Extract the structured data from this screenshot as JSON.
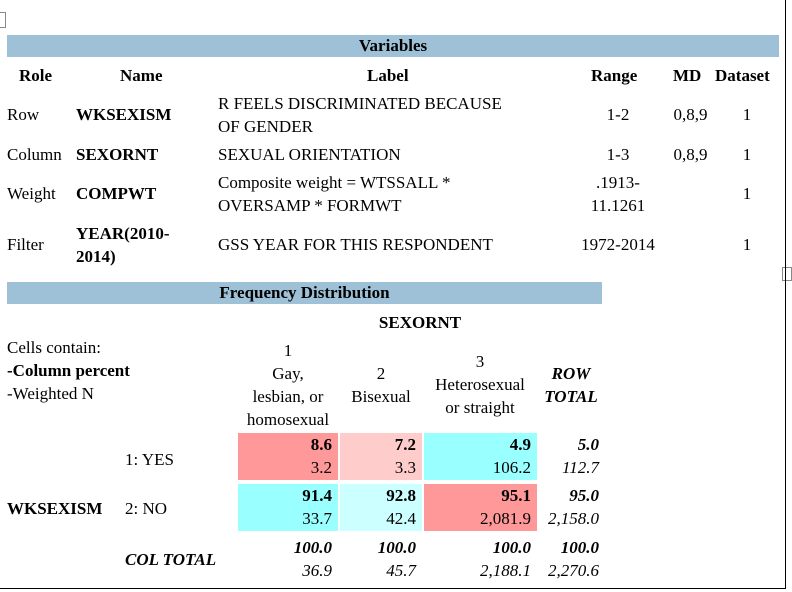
{
  "variables": {
    "title": "Variables",
    "headers": {
      "role": "Role",
      "name": "Name",
      "label": "Label",
      "range": "Range",
      "md": "MD",
      "dataset": "Dataset"
    },
    "rows": [
      {
        "role": "Row",
        "name": "WKSEXISM",
        "label_l1": "R FEELS DISCRIMINATED BECAUSE",
        "label_l2": "OF GENDER",
        "range_l1": "1-2",
        "range_l2": "",
        "md": "0,8,9",
        "dataset": "1"
      },
      {
        "role": "Column",
        "name": "SEXORNT",
        "label_l1": "SEXUAL ORIENTATION",
        "label_l2": "",
        "range_l1": "1-3",
        "range_l2": "",
        "md": "0,8,9",
        "dataset": "1"
      },
      {
        "role": "Weight",
        "name": "COMPWT",
        "label_l1": "Composite weight = WTSSALL *",
        "label_l2": "OVERSAMP * FORMWT",
        "range_l1": ".1913-",
        "range_l2": "11.1261",
        "md": "",
        "dataset": "1"
      },
      {
        "role": "Filter",
        "name_l1": "YEAR(2010-",
        "name_l2": "2014)",
        "label_l1": "GSS YEAR FOR THIS RESPONDENT",
        "label_l2": "",
        "range_l1": "1972-2014",
        "range_l2": "",
        "md": "",
        "dataset": "1"
      }
    ]
  },
  "frequency": {
    "title": "Frequency Distribution",
    "column_var": "SEXORNT",
    "row_var": "WKSEXISM",
    "cells_contain": [
      "Cells contain:",
      "-Column percent",
      "-Weighted N"
    ],
    "columns": [
      {
        "code": "1",
        "label_lines": [
          "Gay,",
          "lesbian, or",
          "homosexual"
        ]
      },
      {
        "code": "2",
        "label_lines": [
          "Bisexual"
        ]
      },
      {
        "code": "3",
        "label_lines": [
          "Heterosexual",
          "or straight"
        ]
      }
    ],
    "row_total_label": [
      "ROW",
      "TOTAL"
    ],
    "rows": [
      {
        "label": "1: YES",
        "cells": [
          {
            "pct": "8.6",
            "n": "3.2"
          },
          {
            "pct": "7.2",
            "n": "3.3"
          },
          {
            "pct": "4.9",
            "n": "106.2"
          }
        ],
        "total": {
          "pct": "5.0",
          "n": "112.7"
        }
      },
      {
        "label": "2: NO",
        "cells": [
          {
            "pct": "91.4",
            "n": "33.7"
          },
          {
            "pct": "92.8",
            "n": "42.4"
          },
          {
            "pct": "95.1",
            "n": "2,081.9"
          }
        ],
        "total": {
          "pct": "95.0",
          "n": "2,158.0"
        }
      }
    ],
    "col_total_label": "COL TOTAL",
    "col_totals": [
      {
        "pct": "100.0",
        "n": "36.9"
      },
      {
        "pct": "100.0",
        "n": "45.7"
      },
      {
        "pct": "100.0",
        "n": "2,188.1"
      }
    ],
    "grand_total": {
      "pct": "100.0",
      "n": "2,270.6"
    },
    "cell_colors": [
      [
        "#ff9999",
        "#ffcccc",
        "#99ffff"
      ],
      [
        "#99ffff",
        "#ccffff",
        "#ff9999"
      ]
    ]
  }
}
